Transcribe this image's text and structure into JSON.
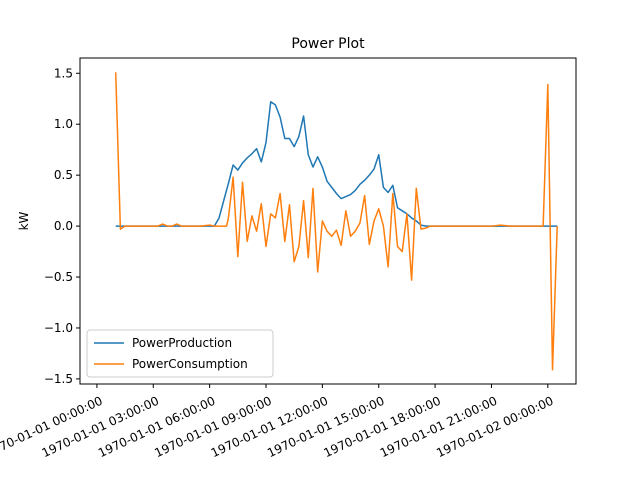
{
  "chart_data": {
    "type": "line",
    "title": "Power Plot",
    "xlabel": "",
    "ylabel": "kW",
    "xlim_hours": [
      -0.9,
      25.5
    ],
    "ylim": [
      -1.55,
      1.65
    ],
    "grid": false,
    "legend_position": "lower-left",
    "x_ticks": [
      {
        "hour": 0,
        "label": "1970-01-01 00:00:00"
      },
      {
        "hour": 3,
        "label": "1970-01-01 03:00:00"
      },
      {
        "hour": 6,
        "label": "1970-01-01 06:00:00"
      },
      {
        "hour": 9,
        "label": "1970-01-01 09:00:00"
      },
      {
        "hour": 12,
        "label": "1970-01-01 12:00:00"
      },
      {
        "hour": 15,
        "label": "1970-01-01 15:00:00"
      },
      {
        "hour": 18,
        "label": "1970-01-01 18:00:00"
      },
      {
        "hour": 21,
        "label": "1970-01-01 21:00:00"
      },
      {
        "hour": 24,
        "label": "1970-01-02 00:00:00"
      }
    ],
    "y_ticks": [
      {
        "value": 1.5,
        "label": "1.5"
      },
      {
        "value": 1.0,
        "label": "1.0"
      },
      {
        "value": 0.5,
        "label": "0.5"
      },
      {
        "value": 0.0,
        "label": "0.0"
      },
      {
        "value": -0.5,
        "label": "−0.5"
      },
      {
        "value": -1.0,
        "label": "−1.0"
      },
      {
        "value": -1.5,
        "label": "−1.5"
      }
    ],
    "series": [
      {
        "name": "PowerProduction",
        "color": "#1f77b4",
        "points": [
          [
            1.0,
            0.0
          ],
          [
            2.0,
            0.0
          ],
          [
            3.0,
            0.0
          ],
          [
            4.0,
            0.0
          ],
          [
            5.0,
            0.0
          ],
          [
            6.0,
            0.0
          ],
          [
            6.25,
            0.0
          ],
          [
            6.5,
            0.08
          ],
          [
            6.75,
            0.25
          ],
          [
            7.0,
            0.42
          ],
          [
            7.25,
            0.6
          ],
          [
            7.5,
            0.55
          ],
          [
            7.75,
            0.62
          ],
          [
            8.0,
            0.67
          ],
          [
            8.25,
            0.71
          ],
          [
            8.5,
            0.76
          ],
          [
            8.75,
            0.63
          ],
          [
            9.0,
            0.82
          ],
          [
            9.25,
            1.22
          ],
          [
            9.5,
            1.19
          ],
          [
            9.75,
            1.07
          ],
          [
            10.0,
            0.86
          ],
          [
            10.25,
            0.86
          ],
          [
            10.5,
            0.78
          ],
          [
            10.75,
            0.88
          ],
          [
            11.0,
            1.08
          ],
          [
            11.25,
            0.7
          ],
          [
            11.5,
            0.58
          ],
          [
            11.75,
            0.68
          ],
          [
            12.0,
            0.58
          ],
          [
            12.25,
            0.44
          ],
          [
            12.5,
            0.38
          ],
          [
            12.75,
            0.32
          ],
          [
            13.0,
            0.27
          ],
          [
            13.25,
            0.29
          ],
          [
            13.5,
            0.31
          ],
          [
            13.75,
            0.35
          ],
          [
            14.0,
            0.41
          ],
          [
            14.25,
            0.45
          ],
          [
            14.5,
            0.5
          ],
          [
            14.75,
            0.56
          ],
          [
            15.0,
            0.7
          ],
          [
            15.25,
            0.38
          ],
          [
            15.5,
            0.33
          ],
          [
            15.75,
            0.4
          ],
          [
            16.0,
            0.18
          ],
          [
            16.25,
            0.15
          ],
          [
            16.5,
            0.12
          ],
          [
            16.75,
            0.08
          ],
          [
            17.0,
            0.05
          ],
          [
            17.25,
            0.01
          ],
          [
            17.5,
            0.0
          ],
          [
            18.0,
            0.0
          ],
          [
            19.0,
            0.0
          ],
          [
            20.0,
            0.0
          ],
          [
            21.0,
            0.0
          ],
          [
            22.0,
            0.0
          ],
          [
            23.0,
            0.0
          ],
          [
            24.0,
            0.0
          ],
          [
            24.5,
            0.0
          ]
        ]
      },
      {
        "name": "PowerConsumption",
        "color": "#ff7f0e",
        "points": [
          [
            1.0,
            1.51
          ],
          [
            1.25,
            -0.03
          ],
          [
            1.5,
            0.0
          ],
          [
            2.0,
            0.0
          ],
          [
            2.5,
            0.0
          ],
          [
            3.0,
            0.0
          ],
          [
            3.25,
            0.0
          ],
          [
            3.5,
            0.02
          ],
          [
            3.75,
            0.0
          ],
          [
            4.0,
            0.0
          ],
          [
            4.25,
            0.02
          ],
          [
            4.5,
            0.0
          ],
          [
            5.0,
            0.0
          ],
          [
            5.5,
            0.0
          ],
          [
            6.0,
            0.01
          ],
          [
            6.25,
            0.0
          ],
          [
            6.5,
            0.0
          ],
          [
            6.75,
            0.0
          ],
          [
            6.9,
            0.0
          ],
          [
            7.0,
            0.08
          ],
          [
            7.25,
            0.48
          ],
          [
            7.5,
            -0.3
          ],
          [
            7.75,
            0.43
          ],
          [
            8.0,
            -0.15
          ],
          [
            8.25,
            0.1
          ],
          [
            8.5,
            -0.05
          ],
          [
            8.75,
            0.22
          ],
          [
            9.0,
            -0.2
          ],
          [
            9.25,
            0.12
          ],
          [
            9.5,
            0.08
          ],
          [
            9.75,
            0.32
          ],
          [
            10.0,
            -0.15
          ],
          [
            10.25,
            0.21
          ],
          [
            10.5,
            -0.35
          ],
          [
            10.75,
            -0.2
          ],
          [
            11.0,
            0.25
          ],
          [
            11.25,
            -0.31
          ],
          [
            11.5,
            0.37
          ],
          [
            11.75,
            -0.45
          ],
          [
            12.0,
            0.05
          ],
          [
            12.25,
            -0.05
          ],
          [
            12.5,
            -0.1
          ],
          [
            12.75,
            -0.04
          ],
          [
            13.0,
            -0.19
          ],
          [
            13.25,
            0.15
          ],
          [
            13.5,
            -0.1
          ],
          [
            13.75,
            -0.05
          ],
          [
            14.0,
            0.03
          ],
          [
            14.25,
            0.3
          ],
          [
            14.5,
            -0.18
          ],
          [
            14.75,
            0.05
          ],
          [
            15.0,
            0.17
          ],
          [
            15.25,
            0.0
          ],
          [
            15.5,
            -0.4
          ],
          [
            15.75,
            0.32
          ],
          [
            16.0,
            -0.2
          ],
          [
            16.25,
            -0.25
          ],
          [
            16.5,
            0.12
          ],
          [
            16.75,
            -0.53
          ],
          [
            17.0,
            0.37
          ],
          [
            17.25,
            -0.03
          ],
          [
            17.5,
            -0.02
          ],
          [
            17.75,
            0.0
          ],
          [
            18.0,
            0.0
          ],
          [
            19.0,
            0.0
          ],
          [
            20.0,
            0.0
          ],
          [
            21.0,
            0.0
          ],
          [
            21.5,
            0.01
          ],
          [
            22.0,
            0.0
          ],
          [
            23.0,
            0.0
          ],
          [
            23.75,
            0.0
          ],
          [
            24.0,
            1.39
          ],
          [
            24.25,
            -1.41
          ],
          [
            24.5,
            0.0
          ]
        ]
      }
    ]
  }
}
